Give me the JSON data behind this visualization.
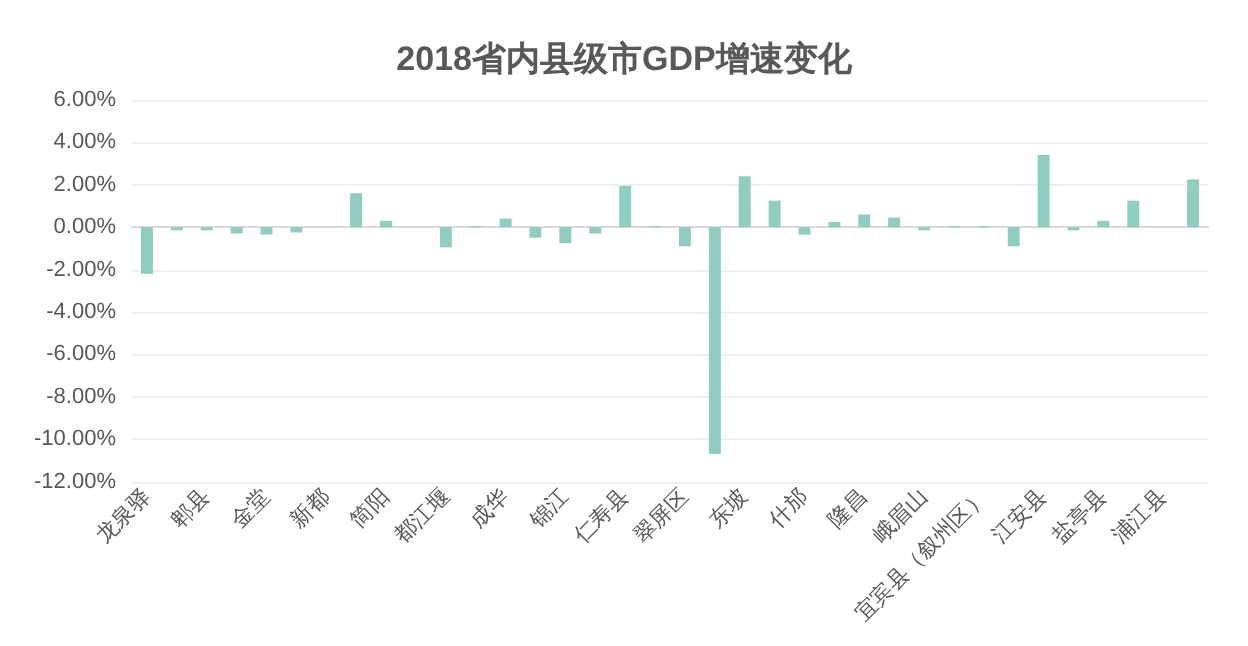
{
  "chart_data": {
    "type": "bar",
    "title": "2018省内县级市GDP增速变化",
    "categories": [
      "龙泉驿",
      null,
      "郫县",
      null,
      "金堂",
      null,
      "新都",
      null,
      "简阳",
      null,
      "都江堰",
      null,
      "成华",
      null,
      "锦江",
      null,
      "仁寿县",
      null,
      "翠屏区",
      null,
      "东坡",
      null,
      "什邡",
      null,
      "隆昌",
      null,
      "峨眉山",
      null,
      "宜宾县（叙州区）",
      null,
      "江安县",
      null,
      "盐亭县",
      null,
      "浦江县",
      null
    ],
    "values": [
      -2.2,
      -0.15,
      -0.15,
      -0.3,
      -0.35,
      -0.25,
      0,
      1.6,
      0.3,
      0,
      -0.95,
      0.05,
      0.4,
      -0.5,
      -0.75,
      -0.3,
      1.95,
      0.05,
      -0.9,
      -10.7,
      2.4,
      1.25,
      -0.35,
      0.25,
      0.6,
      0.45,
      -0.15,
      0.05,
      0.05,
      -0.9,
      3.4,
      -0.15,
      0.3,
      1.25,
      0,
      2.25
    ],
    "color": "#8fcdc1",
    "ylim": [
      -12,
      6
    ],
    "yticks": [
      {
        "value": -12,
        "label": "-12.00%"
      },
      {
        "value": -10,
        "label": "-10.00%"
      },
      {
        "value": -8,
        "label": "-8.00%"
      },
      {
        "value": -6,
        "label": "-6.00%"
      },
      {
        "value": -4,
        "label": "-4.00%"
      },
      {
        "value": -2,
        "label": "-2.00%"
      },
      {
        "value": 0,
        "label": "0.00%"
      },
      {
        "value": 2,
        "label": "2.00%"
      },
      {
        "value": 4,
        "label": "4.00%"
      },
      {
        "value": 6,
        "label": "6.00%"
      }
    ],
    "grid": true
  }
}
